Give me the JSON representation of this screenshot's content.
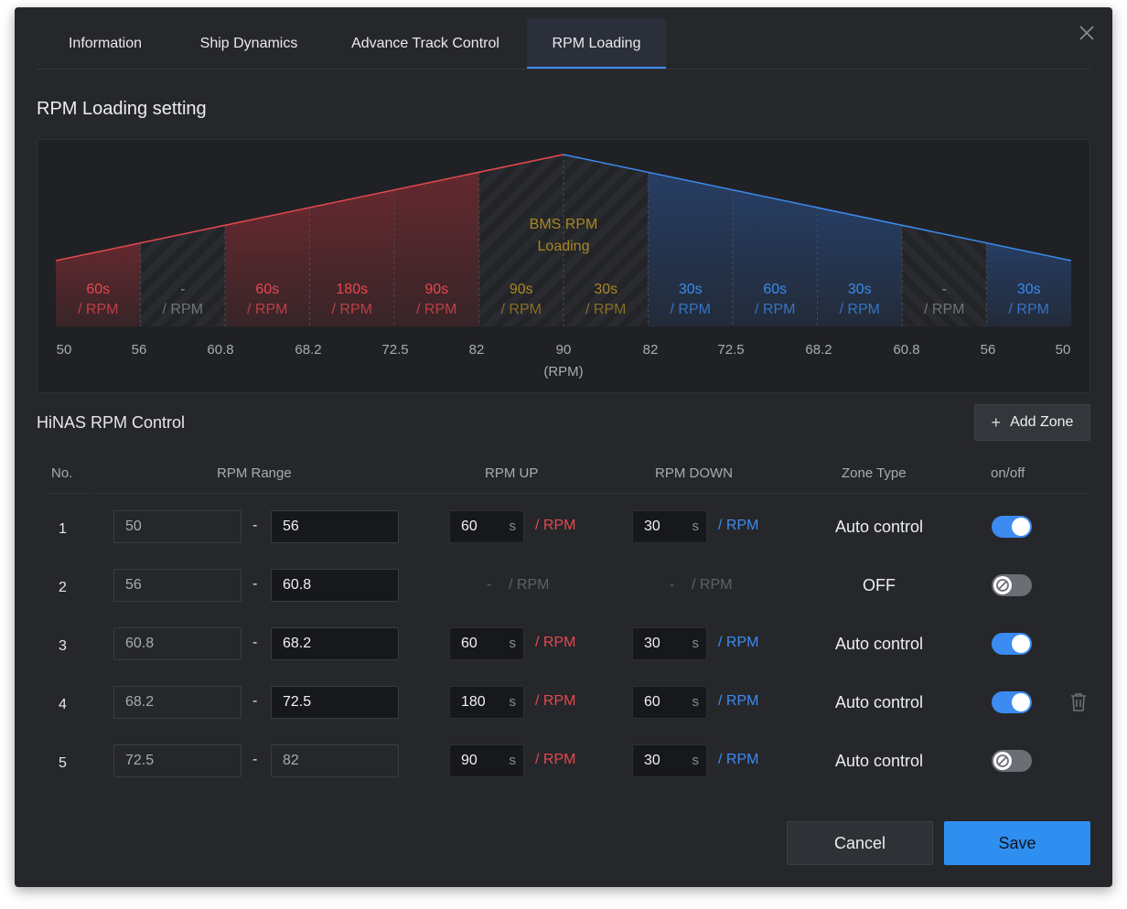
{
  "tabs": [
    {
      "label": "Information"
    },
    {
      "label": "Ship Dynamics"
    },
    {
      "label": "Advance Track Control"
    },
    {
      "label": "RPM Loading",
      "active": true
    }
  ],
  "section_title": "RPM Loading setting",
  "chart_data": {
    "type": "area",
    "center_label_line1": "BMS RPM",
    "center_label_line2": "Loading",
    "x_ticks": [
      "50",
      "56",
      "60.8",
      "68.2",
      "72.5",
      "82",
      "90",
      "82",
      "72.5",
      "68.2",
      "60.8",
      "56",
      "50"
    ],
    "x_unit": "(RPM)",
    "segments": [
      {
        "value": "60s",
        "unit": "/ RPM",
        "kind": "up"
      },
      {
        "value": "-",
        "unit": "/ RPM",
        "kind": "off"
      },
      {
        "value": "60s",
        "unit": "/ RPM",
        "kind": "up"
      },
      {
        "value": "180s",
        "unit": "/ RPM",
        "kind": "up"
      },
      {
        "value": "90s",
        "unit": "/ RPM",
        "kind": "up"
      },
      {
        "value": "90s",
        "unit": "/ RPM",
        "kind": "bms"
      },
      {
        "value": "30s",
        "unit": "/ RPM",
        "kind": "bms"
      },
      {
        "value": "30s",
        "unit": "/ RPM",
        "kind": "down"
      },
      {
        "value": "60s",
        "unit": "/ RPM",
        "kind": "down"
      },
      {
        "value": "30s",
        "unit": "/ RPM",
        "kind": "down"
      },
      {
        "value": "-",
        "unit": "/ RPM",
        "kind": "off"
      },
      {
        "value": "30s",
        "unit": "/ RPM",
        "kind": "down"
      }
    ],
    "colors": {
      "up": "#e5484d",
      "down": "#3b8bf0",
      "bms": "#a98722",
      "off": "#8a8d94"
    }
  },
  "control": {
    "title": "HiNAS RPM Control",
    "add_zone_label": "Add Zone",
    "add_zone_icon": "+",
    "headers": {
      "no": "No.",
      "range": "RPM Range",
      "up": "RPM UP",
      "down": "RPM DOWN",
      "zone": "Zone Type",
      "onoff": "on/off"
    },
    "dash": "-",
    "sec_unit": "s",
    "per_rpm": "/ RPM",
    "off_dash": "-",
    "rows": [
      {
        "no": "1",
        "from": "50",
        "to": "56",
        "up": "60",
        "down": "30",
        "zone": "Auto control",
        "on": true
      },
      {
        "no": "2",
        "from": "56",
        "to": "60.8",
        "up": "",
        "down": "",
        "zone": "OFF",
        "on": false
      },
      {
        "no": "3",
        "from": "60.8",
        "to": "68.2",
        "up": "60",
        "down": "30",
        "zone": "Auto control",
        "on": true
      },
      {
        "no": "4",
        "from": "68.2",
        "to": "72.5",
        "up": "180",
        "down": "60",
        "zone": "Auto control",
        "on": true
      },
      {
        "no": "5",
        "from": "72.5",
        "to": "82",
        "up": "90",
        "down": "30",
        "zone": "Auto control",
        "on": false
      }
    ]
  },
  "buttons": {
    "cancel": "Cancel",
    "save": "Save"
  },
  "colors": {
    "accent": "#3b8bf0",
    "up": "#e5484d",
    "down": "#3b8bf0",
    "bg": "#26272b"
  }
}
